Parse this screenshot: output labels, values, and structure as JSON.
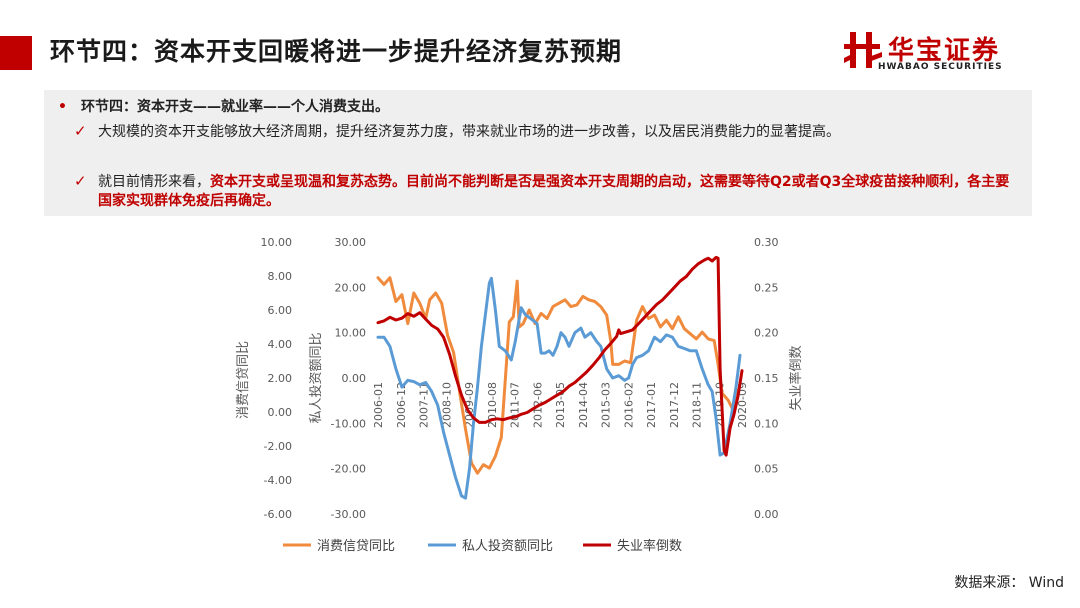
{
  "slide": {
    "title": "环节四：资本开支回暖将进一步提升经济复苏预期",
    "logo_cn": "华宝证券",
    "logo_en": "HWABAO SECURITIES",
    "bullet": "环节四：资本开支——就业率——个人消费支出。",
    "point1": "大规模的资本开支能够放大经济周期，提升经济复苏力度，带来就业市场的进一步改善，以及居民消费能力的显著提高。",
    "point2_lead": "就目前情形来看，",
    "point2_emph": "资本开支或呈现温和复苏态势。目前尚不能判断是否是强资本开支周期的启动，这需要等待Q2或者Q3全球疫苗接种顺利，各主要国家实现群体免疫后再确定。",
    "source": "数据来源： Wind",
    "brand_color": "#c00000"
  },
  "chart_data": {
    "type": "line",
    "x_tick_labels": [
      "2006-01",
      "2006-12",
      "2007-11",
      "2008-10",
      "2009-09",
      "2010-08",
      "2011-07",
      "2012-06",
      "2013-05",
      "2014-04",
      "2015-03",
      "2016-02",
      "2017-01",
      "2017-12",
      "2018-11",
      "2019-10",
      "2020-09"
    ],
    "axes": {
      "left_outer": {
        "label": "消费信贷同比",
        "range": [
          -6,
          10
        ],
        "ticks": [
          "10.00",
          "8.00",
          "6.00",
          "4.00",
          "2.00",
          "0.00",
          "-2.00",
          "-4.00",
          "-6.00"
        ]
      },
      "left_inner": {
        "label": "私人投资额同比",
        "range": [
          -30,
          30
        ],
        "ticks": [
          "30.00",
          "20.00",
          "10.00",
          "0.00",
          "-10.00",
          "-20.00",
          "-30.00"
        ]
      },
      "right": {
        "label": "失业率倒数",
        "range": [
          0,
          0.3
        ],
        "ticks": [
          "0.30",
          "0.25",
          "0.20",
          "0.15",
          "0.10",
          "0.05",
          "0.00"
        ]
      }
    },
    "series": [
      {
        "name": "消费信贷同比",
        "color": "#f08a3c",
        "axis": "left_outer",
        "points": [
          [
            0,
            7.9
          ],
          [
            3,
            7.5
          ],
          [
            6,
            7.9
          ],
          [
            9,
            6.5
          ],
          [
            12,
            6.9
          ],
          [
            15,
            5.2
          ],
          [
            18,
            7.0
          ],
          [
            21,
            6.4
          ],
          [
            24,
            5.5
          ],
          [
            26,
            6.6
          ],
          [
            29,
            7.0
          ],
          [
            32,
            6.4
          ],
          [
            35,
            4.5
          ],
          [
            38,
            3.5
          ],
          [
            41,
            1.2
          ],
          [
            44,
            -1.0
          ],
          [
            47,
            -3.0
          ],
          [
            50,
            -3.6
          ],
          [
            53,
            -3.1
          ],
          [
            56,
            -3.3
          ],
          [
            59,
            -2.6
          ],
          [
            62,
            -1.5
          ],
          [
            65,
            3.6
          ],
          [
            66,
            5.3
          ],
          [
            68,
            5.6
          ],
          [
            70,
            7.7
          ],
          [
            71,
            5.0
          ],
          [
            73,
            5.2
          ],
          [
            76,
            6.0
          ],
          [
            79,
            5.2
          ],
          [
            82,
            5.8
          ],
          [
            85,
            5.5
          ],
          [
            88,
            6.2
          ],
          [
            91,
            6.4
          ],
          [
            94,
            6.6
          ],
          [
            97,
            6.2
          ],
          [
            100,
            6.3
          ],
          [
            103,
            6.8
          ],
          [
            106,
            6.6
          ],
          [
            109,
            6.5
          ],
          [
            112,
            6.2
          ],
          [
            115,
            5.7
          ],
          [
            117,
            4.2
          ],
          [
            118,
            2.8
          ],
          [
            121,
            2.8
          ],
          [
            124,
            3.0
          ],
          [
            127,
            2.9
          ],
          [
            130,
            5.4
          ],
          [
            133,
            6.2
          ],
          [
            136,
            5.5
          ],
          [
            139,
            5.7
          ],
          [
            142,
            5.0
          ],
          [
            145,
            5.4
          ],
          [
            148,
            4.9
          ],
          [
            151,
            5.6
          ],
          [
            154,
            4.9
          ],
          [
            157,
            4.6
          ],
          [
            160,
            4.3
          ],
          [
            163,
            4.7
          ],
          [
            166,
            4.3
          ],
          [
            169,
            4.2
          ],
          [
            171,
            2.8
          ],
          [
            173,
            1.1
          ],
          [
            176,
            0.7
          ],
          [
            179,
            0.0
          ],
          [
            181,
            1.3
          ]
        ]
      },
      {
        "name": "私人投资额同比",
        "color": "#5b9bd5",
        "axis": "left_inner",
        "points": [
          [
            0,
            9.0
          ],
          [
            3,
            9.0
          ],
          [
            6,
            7.0
          ],
          [
            9,
            2.0
          ],
          [
            12,
            -2.0
          ],
          [
            15,
            -0.5
          ],
          [
            18,
            -0.8
          ],
          [
            21,
            -1.5
          ],
          [
            24,
            -1.0
          ],
          [
            27,
            -3.0
          ],
          [
            30,
            -6.0
          ],
          [
            33,
            -12.0
          ],
          [
            36,
            -17.0
          ],
          [
            39,
            -22.0
          ],
          [
            42,
            -26.0
          ],
          [
            44,
            -26.5
          ],
          [
            46,
            -20.0
          ],
          [
            48,
            -10.0
          ],
          [
            50,
            -2.0
          ],
          [
            52,
            7.0
          ],
          [
            54,
            14.0
          ],
          [
            56,
            21.0
          ],
          [
            57,
            22.0
          ],
          [
            59,
            15.0
          ],
          [
            61,
            7.0
          ],
          [
            64,
            6.0
          ],
          [
            67,
            4.0
          ],
          [
            69,
            8.0
          ],
          [
            72,
            15.5
          ],
          [
            74,
            14.0
          ],
          [
            77,
            13.0
          ],
          [
            80,
            12.0
          ],
          [
            82,
            5.5
          ],
          [
            84,
            5.5
          ],
          [
            86,
            6.0
          ],
          [
            88,
            5.0
          ],
          [
            90,
            7.0
          ],
          [
            92,
            10.0
          ],
          [
            94,
            9.0
          ],
          [
            96,
            7.0
          ],
          [
            99,
            10.0
          ],
          [
            102,
            11.0
          ],
          [
            104,
            9.0
          ],
          [
            107,
            10.0
          ],
          [
            110,
            8.0
          ],
          [
            112,
            7.0
          ],
          [
            115,
            2.0
          ],
          [
            118,
            0.0
          ],
          [
            121,
            0.5
          ],
          [
            124,
            -0.5
          ],
          [
            126,
            0.0
          ],
          [
            128,
            3.0
          ],
          [
            130,
            4.5
          ],
          [
            133,
            5.0
          ],
          [
            136,
            6.0
          ],
          [
            139,
            9.0
          ],
          [
            142,
            8.0
          ],
          [
            145,
            9.5
          ],
          [
            148,
            9.0
          ],
          [
            151,
            7.0
          ],
          [
            154,
            6.5
          ],
          [
            157,
            6.0
          ],
          [
            160,
            6.0
          ],
          [
            163,
            2.0
          ],
          [
            166,
            -1.5
          ],
          [
            168,
            -3.0
          ],
          [
            170,
            -9.0
          ],
          [
            172,
            -17.0
          ],
          [
            174,
            -16.5
          ],
          [
            177,
            -10.0
          ],
          [
            180,
            -2.0
          ],
          [
            182,
            5.0
          ]
        ]
      },
      {
        "name": "失业率倒数",
        "color": "#c00000",
        "axis": "right",
        "points": [
          [
            0,
            0.211
          ],
          [
            3,
            0.213
          ],
          [
            6,
            0.217
          ],
          [
            9,
            0.214
          ],
          [
            12,
            0.216
          ],
          [
            15,
            0.221
          ],
          [
            18,
            0.218
          ],
          [
            21,
            0.222
          ],
          [
            24,
            0.215
          ],
          [
            27,
            0.208
          ],
          [
            30,
            0.204
          ],
          [
            33,
            0.195
          ],
          [
            36,
            0.176
          ],
          [
            39,
            0.152
          ],
          [
            42,
            0.131
          ],
          [
            45,
            0.115
          ],
          [
            48,
            0.106
          ],
          [
            51,
            0.101
          ],
          [
            54,
            0.101
          ],
          [
            57,
            0.104
          ],
          [
            60,
            0.105
          ],
          [
            63,
            0.104
          ],
          [
            66,
            0.106
          ],
          [
            69,
            0.107
          ],
          [
            72,
            0.11
          ],
          [
            75,
            0.112
          ],
          [
            78,
            0.116
          ],
          [
            81,
            0.12
          ],
          [
            84,
            0.123
          ],
          [
            87,
            0.127
          ],
          [
            90,
            0.131
          ],
          [
            93,
            0.135
          ],
          [
            96,
            0.141
          ],
          [
            99,
            0.145
          ],
          [
            102,
            0.151
          ],
          [
            105,
            0.157
          ],
          [
            108,
            0.164
          ],
          [
            111,
            0.172
          ],
          [
            114,
            0.181
          ],
          [
            117,
            0.188
          ],
          [
            120,
            0.196
          ],
          [
            121,
            0.203
          ],
          [
            122,
            0.199
          ],
          [
            125,
            0.201
          ],
          [
            128,
            0.203
          ],
          [
            131,
            0.21
          ],
          [
            134,
            0.217
          ],
          [
            137,
            0.224
          ],
          [
            140,
            0.231
          ],
          [
            143,
            0.236
          ],
          [
            146,
            0.243
          ],
          [
            149,
            0.25
          ],
          [
            152,
            0.257
          ],
          [
            155,
            0.262
          ],
          [
            158,
            0.27
          ],
          [
            161,
            0.276
          ],
          [
            164,
            0.28
          ],
          [
            166,
            0.282
          ],
          [
            168,
            0.279
          ],
          [
            170,
            0.283
          ],
          [
            171,
            0.282
          ],
          [
            172,
            0.16
          ],
          [
            174,
            0.07
          ],
          [
            175,
            0.065
          ],
          [
            177,
            0.095
          ],
          [
            179,
            0.11
          ],
          [
            181,
            0.13
          ],
          [
            183,
            0.158
          ]
        ]
      }
    ],
    "legend_position": "bottom",
    "grid": false
  }
}
